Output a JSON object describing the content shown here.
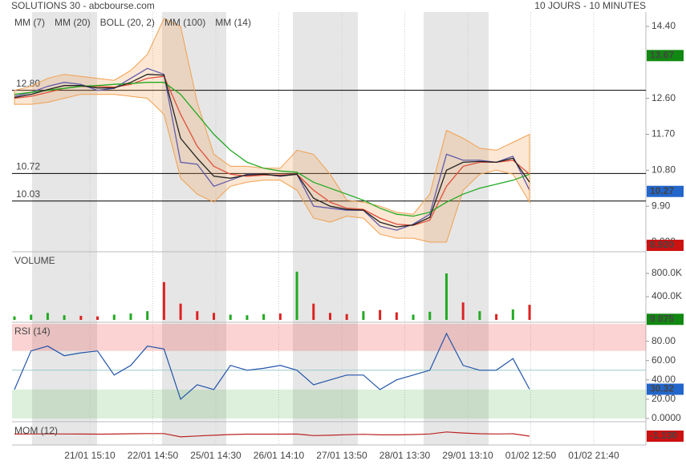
{
  "header": {
    "title": "SOLUTIONS 30 - abcbourse.com",
    "period": "10 JOURS - 10 MINUTES"
  },
  "time_axis": {
    "labels": [
      "21/01 15:10",
      "22/01 14:50",
      "25/01 14:30",
      "26/01 14:10",
      "27/01 13:50",
      "28/01 13:30",
      "29/01 13:10",
      "01/02 12:50",
      "01/02 21:40"
    ]
  },
  "chart_data": [
    {
      "type": "line",
      "series": [
        {
          "name": "MM (7)",
          "color": "#3344cc",
          "values": [
            12.65,
            12.75,
            12.9,
            13.0,
            12.95,
            12.8,
            12.85,
            13.1,
            13.35,
            13.2,
            11.0,
            10.95,
            10.4,
            10.55,
            10.7,
            10.7,
            10.65,
            10.7,
            9.9,
            9.85,
            9.8,
            9.8,
            9.4,
            9.3,
            9.45,
            9.7,
            11.2,
            11.05,
            11.05,
            11.0,
            11.15,
            10.3
          ]
        },
        {
          "name": "MM (20)",
          "color": "#dd3333",
          "values": [
            12.6,
            12.65,
            12.75,
            12.85,
            12.9,
            12.9,
            12.88,
            12.95,
            13.1,
            13.15,
            12.2,
            11.4,
            10.9,
            10.7,
            10.65,
            10.68,
            10.68,
            10.7,
            10.3,
            10.0,
            9.85,
            9.82,
            9.6,
            9.45,
            9.42,
            9.55,
            10.4,
            10.9,
            11.0,
            11.0,
            11.05,
            10.7
          ]
        },
        {
          "name": "BOLL (20, 2)",
          "color": "#f0a050",
          "upper": [
            12.8,
            12.9,
            13.1,
            13.2,
            13.15,
            13.1,
            13.05,
            13.3,
            13.7,
            14.6,
            14.4,
            12.5,
            11.2,
            10.9,
            10.9,
            10.85,
            10.85,
            11.3,
            11.2,
            10.7,
            10.05,
            10.0,
            9.9,
            9.75,
            9.7,
            10.2,
            11.8,
            11.6,
            11.35,
            11.3,
            11.5,
            11.7
          ],
          "lower": [
            12.45,
            12.45,
            12.5,
            12.6,
            12.7,
            12.7,
            12.7,
            12.65,
            12.6,
            12.2,
            10.6,
            10.2,
            10.0,
            10.4,
            10.5,
            10.55,
            10.55,
            10.3,
            9.6,
            9.5,
            9.65,
            9.6,
            9.2,
            9.1,
            9.1,
            9.0,
            9.0,
            10.3,
            10.7,
            10.8,
            10.7,
            10.0
          ]
        },
        {
          "name": "MM (100)",
          "color": "#22aa22",
          "values": [
            12.7,
            12.75,
            12.8,
            12.85,
            12.9,
            12.92,
            12.95,
            12.97,
            13.0,
            13.0,
            12.7,
            12.2,
            11.7,
            11.3,
            11.0,
            10.85,
            10.78,
            10.75,
            10.5,
            10.35,
            10.2,
            10.05,
            9.85,
            9.7,
            9.65,
            9.75,
            10.0,
            10.2,
            10.35,
            10.45,
            10.55,
            10.7
          ]
        },
        {
          "name": "MM (14)",
          "color": "#222222",
          "values": [
            12.62,
            12.7,
            12.82,
            12.92,
            12.92,
            12.86,
            12.86,
            13.0,
            13.2,
            13.18,
            11.6,
            11.1,
            10.65,
            10.6,
            10.68,
            10.7,
            10.66,
            10.7,
            10.1,
            9.9,
            9.82,
            9.8,
            9.5,
            9.38,
            9.43,
            9.62,
            10.8,
            11.0,
            11.02,
            11.0,
            11.1,
            10.5
          ]
        }
      ],
      "ylim": [
        8.8,
        14.76
      ],
      "yticks": [
        {
          "value": 14.4,
          "label": "14.40"
        },
        {
          "value": 12.6,
          "label": "12.60"
        },
        {
          "value": 11.7,
          "label": "11.70"
        },
        {
          "value": 10.8,
          "label": "10.80"
        },
        {
          "value": 9.9,
          "label": "9.90"
        },
        {
          "value": 9,
          "label": "9.000"
        }
      ],
      "levels": [
        {
          "value": 12.8,
          "label": "12.80"
        },
        {
          "value": 10.72,
          "label": "10.72"
        },
        {
          "value": 10.03,
          "label": "10.03"
        }
      ],
      "badges": [
        {
          "value": 13.67,
          "label": "13.67",
          "color": "#118811"
        },
        {
          "value": 10.27,
          "label": "10.27",
          "color": "#2266cc"
        },
        {
          "value": 8.92,
          "label": "8.920",
          "color": "#cc1111"
        }
      ]
    },
    {
      "type": "bar",
      "title": "VOLUME",
      "up_color": "#22aa22",
      "down_color": "#dd2222",
      "values": [
        60000,
        90000,
        120000,
        80000,
        70000,
        60000,
        90000,
        110000,
        150000,
        650000,
        280000,
        150000,
        120000,
        90000,
        80000,
        100000,
        110000,
        830000,
        280000,
        120000,
        100000,
        150000,
        170000,
        130000,
        90000,
        140000,
        800000,
        300000,
        150000,
        100000,
        180000,
        260000
      ],
      "ylim": [
        0,
        1145000
      ],
      "yticks": [
        {
          "value": 400000,
          "label": "400.0K"
        },
        {
          "value": 800000,
          "label": "800.0K"
        }
      ],
      "badges": [
        {
          "value": 9875,
          "label": "9 875",
          "color": "#118811"
        }
      ]
    },
    {
      "type": "line",
      "title": "RSI (14)",
      "color": "#2255aa",
      "values": [
        30,
        70,
        75,
        65,
        68,
        70,
        45,
        55,
        75,
        72,
        20,
        35,
        30,
        55,
        50,
        52,
        55,
        50,
        35,
        40,
        45,
        45,
        30,
        40,
        45,
        50,
        88,
        55,
        50,
        50,
        62,
        30.32
      ],
      "ylim": [
        0,
        98
      ],
      "yticks": [
        {
          "value": 80,
          "label": "80.00"
        },
        {
          "value": 60,
          "label": "60.00"
        },
        {
          "value": 40,
          "label": "40.00"
        },
        {
          "value": 20,
          "label": "20.00"
        },
        {
          "value": 0,
          "label": "0.0000"
        }
      ],
      "overbought": 70,
      "oversold": 30,
      "badges": [
        {
          "value": 30.32,
          "label": "30.32",
          "color": "#2266cc"
        }
      ]
    },
    {
      "type": "line",
      "title": "MOM (12)",
      "color": "#bb2222",
      "values": [
        0.05,
        0.1,
        0.15,
        0.1,
        0.05,
        0,
        0.05,
        0.2,
        0.3,
        0.3,
        -1.5,
        -1.0,
        -0.6,
        -0.2,
        0,
        0,
        0,
        0.05,
        -0.8,
        -0.6,
        -0.3,
        -0.1,
        -0.4,
        -0.4,
        -0.2,
        0.1,
        1.2,
        0.6,
        0.2,
        0.1,
        0.2,
        -1.13
      ],
      "ylim": [
        -6,
        6
      ],
      "badges": [
        {
          "value": -1.13,
          "label": "-1.130",
          "color": "#cc1111"
        }
      ]
    }
  ]
}
